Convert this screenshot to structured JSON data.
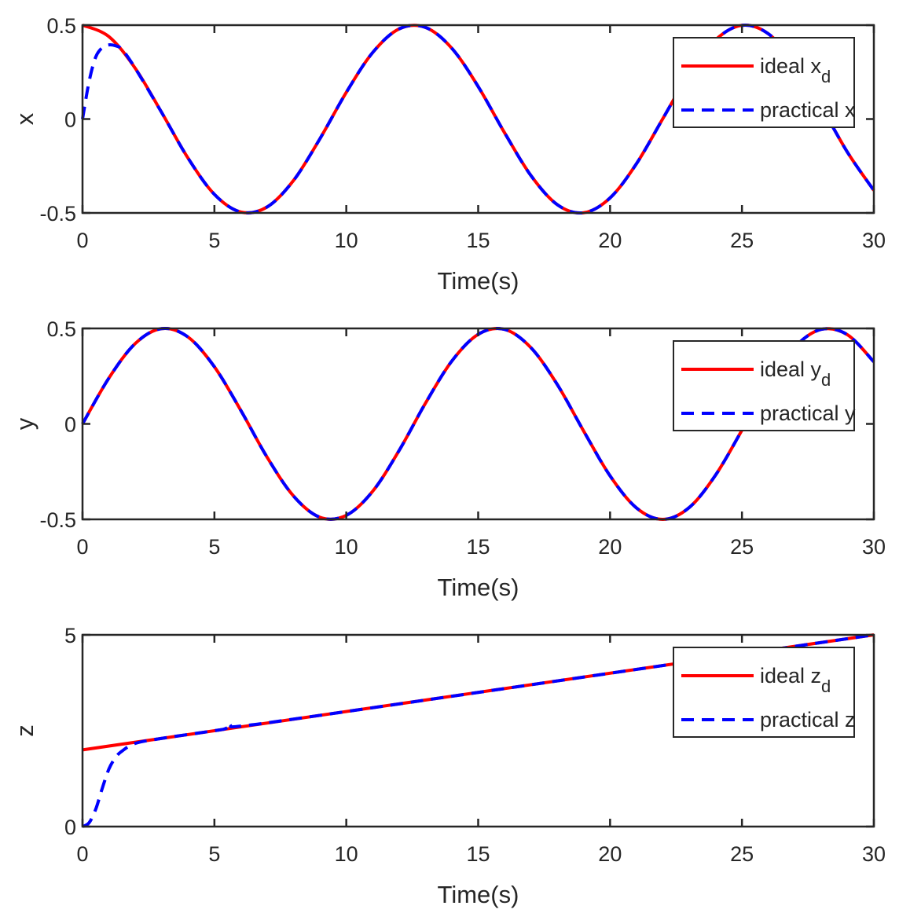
{
  "colors": {
    "ideal": "#ff0000",
    "practical": "#0000ff",
    "axis": "#262626"
  },
  "chart_data": [
    {
      "type": "line",
      "xlabel": "Time(s)",
      "ylabel": "x",
      "xlim": [
        0,
        30
      ],
      "ylim": [
        -0.5,
        0.5
      ],
      "xticks": [
        0,
        5,
        10,
        15,
        20,
        25,
        30
      ],
      "yticks": [
        -0.5,
        0,
        0.5
      ],
      "ytick_labels": [
        "-0.5",
        "0",
        "0.5"
      ],
      "grid": false,
      "legend_position": "top-right",
      "series": [
        {
          "name": "ideal x",
          "sub": "d",
          "style": "solid",
          "x": [
            0,
            1,
            2,
            3,
            4,
            5,
            6,
            7,
            8,
            9,
            10,
            11,
            12,
            13,
            14,
            15,
            16,
            17,
            18,
            19,
            20,
            21,
            22,
            23,
            24,
            25,
            26,
            27,
            28,
            29,
            30
          ],
          "y": [
            0.5,
            0.439,
            0.27,
            0.035,
            -0.208,
            -0.401,
            -0.495,
            -0.468,
            -0.327,
            -0.105,
            0.142,
            0.354,
            0.48,
            0.488,
            0.377,
            0.173,
            -0.073,
            -0.301,
            -0.456,
            -0.499,
            -0.42,
            -0.238,
            0.002,
            0.242,
            0.422,
            0.499,
            0.454,
            0.297,
            0.068,
            -0.177,
            -0.38
          ]
        },
        {
          "name": "practical x",
          "sub": "",
          "style": "dashed",
          "x": [
            0,
            0.25,
            0.5,
            0.75,
            1,
            1.25,
            1.5,
            2,
            3,
            4,
            5,
            6,
            7,
            8,
            9,
            10,
            11,
            12,
            13,
            14,
            15,
            16,
            17,
            18,
            19,
            20,
            21,
            22,
            23,
            24,
            25,
            26,
            27,
            28,
            29,
            30
          ],
          "y": [
            0,
            0.2,
            0.33,
            0.38,
            0.395,
            0.39,
            0.37,
            0.27,
            0.035,
            -0.208,
            -0.401,
            -0.495,
            -0.468,
            -0.327,
            -0.105,
            0.142,
            0.354,
            0.48,
            0.488,
            0.377,
            0.173,
            -0.073,
            -0.301,
            -0.456,
            -0.499,
            -0.42,
            -0.238,
            0.002,
            0.242,
            0.422,
            0.499,
            0.454,
            0.297,
            0.068,
            -0.177,
            -0.38
          ]
        }
      ]
    },
    {
      "type": "line",
      "xlabel": "Time(s)",
      "ylabel": "y",
      "xlim": [
        0,
        30
      ],
      "ylim": [
        -0.5,
        0.5
      ],
      "xticks": [
        0,
        5,
        10,
        15,
        20,
        25,
        30
      ],
      "yticks": [
        -0.5,
        0,
        0.5
      ],
      "ytick_labels": [
        "-0.5",
        "0",
        "0.5"
      ],
      "grid": false,
      "legend_position": "top-right",
      "series": [
        {
          "name": "ideal y",
          "sub": "d",
          "style": "solid",
          "x": [
            0,
            1,
            2,
            3,
            4,
            5,
            6,
            7,
            8,
            9,
            10,
            11,
            12,
            13,
            14,
            15,
            16,
            17,
            18,
            19,
            20,
            21,
            22,
            23,
            24,
            25,
            26,
            27,
            28,
            29,
            30
          ],
          "y": [
            0,
            0.24,
            0.421,
            0.499,
            0.455,
            0.299,
            0.071,
            -0.175,
            -0.378,
            -0.489,
            -0.479,
            -0.353,
            -0.14,
            0.108,
            0.329,
            0.469,
            0.495,
            0.399,
            0.206,
            -0.038,
            -0.272,
            -0.44,
            -0.5,
            -0.438,
            -0.268,
            -0.033,
            0.21,
            0.402,
            0.495,
            0.467,
            0.325
          ]
        },
        {
          "name": "practical y",
          "sub": "",
          "style": "dashed",
          "x": [
            0,
            1,
            2,
            3,
            4,
            5,
            6,
            7,
            8,
            9,
            10,
            11,
            12,
            13,
            14,
            15,
            16,
            17,
            18,
            19,
            20,
            21,
            22,
            23,
            24,
            25,
            26,
            27,
            28,
            29,
            30
          ],
          "y": [
            0,
            0.24,
            0.421,
            0.499,
            0.455,
            0.299,
            0.071,
            -0.175,
            -0.378,
            -0.489,
            -0.479,
            -0.353,
            -0.14,
            0.108,
            0.329,
            0.469,
            0.495,
            0.399,
            0.206,
            -0.038,
            -0.272,
            -0.44,
            -0.5,
            -0.438,
            -0.268,
            -0.033,
            0.21,
            0.402,
            0.495,
            0.467,
            0.325
          ]
        }
      ]
    },
    {
      "type": "line",
      "xlabel": "Time(s)",
      "ylabel": "z",
      "xlim": [
        0,
        30
      ],
      "ylim": [
        0,
        5
      ],
      "xticks": [
        0,
        5,
        10,
        15,
        20,
        25,
        30
      ],
      "yticks": [
        0,
        5
      ],
      "ytick_labels": [
        "0",
        "5"
      ],
      "grid": false,
      "legend_position": "top-right",
      "series": [
        {
          "name": "ideal z",
          "sub": "d",
          "style": "solid",
          "x": [
            0,
            30
          ],
          "y": [
            2,
            5
          ]
        },
        {
          "name": "practical z",
          "sub": "",
          "style": "dashed",
          "x": [
            0,
            0.25,
            0.5,
            0.75,
            1,
            1.25,
            1.5,
            2,
            3,
            5,
            5.4,
            5.7,
            6,
            10,
            30
          ],
          "y": [
            0,
            0.1,
            0.45,
            1.0,
            1.5,
            1.8,
            1.97,
            2.17,
            2.3,
            2.5,
            2.55,
            2.65,
            2.62,
            3.0,
            5.0
          ]
        }
      ]
    }
  ]
}
